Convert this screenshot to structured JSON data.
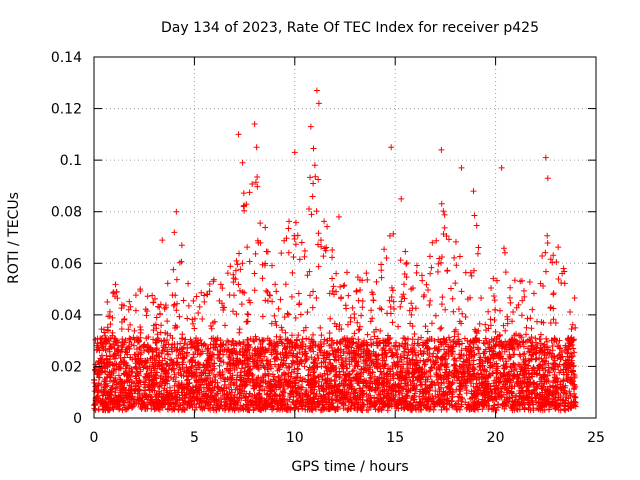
{
  "chart_data": {
    "type": "scatter",
    "title": "Day 134 of 2023, Rate Of TEC Index for receiver p425",
    "xlabel": "GPS time / hours",
    "ylabel": "ROTI / TECUs",
    "xlim": [
      0,
      25
    ],
    "ylim": [
      0,
      0.14
    ],
    "xticks": [
      "0",
      "5",
      "10",
      "15",
      "20",
      "25"
    ],
    "yticks": [
      "0",
      "0.02",
      "0.04",
      "0.06",
      "0.08",
      "0.1",
      "0.12",
      "0.14"
    ],
    "grid": true,
    "marker": "+",
    "color": "#ff0000",
    "envelope": {
      "x": [
        0,
        0.3,
        1.0,
        1.5,
        2.3,
        3.5,
        4.2,
        5.0,
        6.0,
        7.0,
        7.5,
        8.2,
        9.0,
        10.0,
        10.8,
        11.2,
        12.0,
        13.0,
        14.0,
        14.8,
        15.5,
        16.5,
        17.3,
        18.0,
        19.0,
        19.5,
        20.3,
        21.0,
        22.0,
        22.6,
        23.5,
        24.0
      ],
      "y": [
        0.025,
        0.03,
        0.05,
        0.04,
        0.045,
        0.04,
        0.07,
        0.045,
        0.05,
        0.06,
        0.085,
        0.09,
        0.05,
        0.08,
        0.1,
        0.11,
        0.06,
        0.05,
        0.06,
        0.07,
        0.06,
        0.05,
        0.08,
        0.065,
        0.075,
        0.04,
        0.065,
        0.05,
        0.05,
        0.07,
        0.06,
        0.045
      ]
    },
    "highlights": [
      {
        "x": 4.1,
        "y": 0.08
      },
      {
        "x": 4.0,
        "y": 0.072
      },
      {
        "x": 3.4,
        "y": 0.069
      },
      {
        "x": 7.2,
        "y": 0.11
      },
      {
        "x": 7.4,
        "y": 0.099
      },
      {
        "x": 8.0,
        "y": 0.114
      },
      {
        "x": 8.1,
        "y": 0.105
      },
      {
        "x": 10.0,
        "y": 0.103
      },
      {
        "x": 11.1,
        "y": 0.127
      },
      {
        "x": 11.2,
        "y": 0.122
      },
      {
        "x": 10.8,
        "y": 0.113
      },
      {
        "x": 11.0,
        "y": 0.098
      },
      {
        "x": 14.8,
        "y": 0.105
      },
      {
        "x": 17.3,
        "y": 0.104
      },
      {
        "x": 18.3,
        "y": 0.097
      },
      {
        "x": 20.3,
        "y": 0.097
      },
      {
        "x": 22.5,
        "y": 0.101
      },
      {
        "x": 22.6,
        "y": 0.093
      },
      {
        "x": 18.9,
        "y": 0.088
      },
      {
        "x": 15.3,
        "y": 0.085
      },
      {
        "x": 12.2,
        "y": 0.078
      }
    ]
  }
}
